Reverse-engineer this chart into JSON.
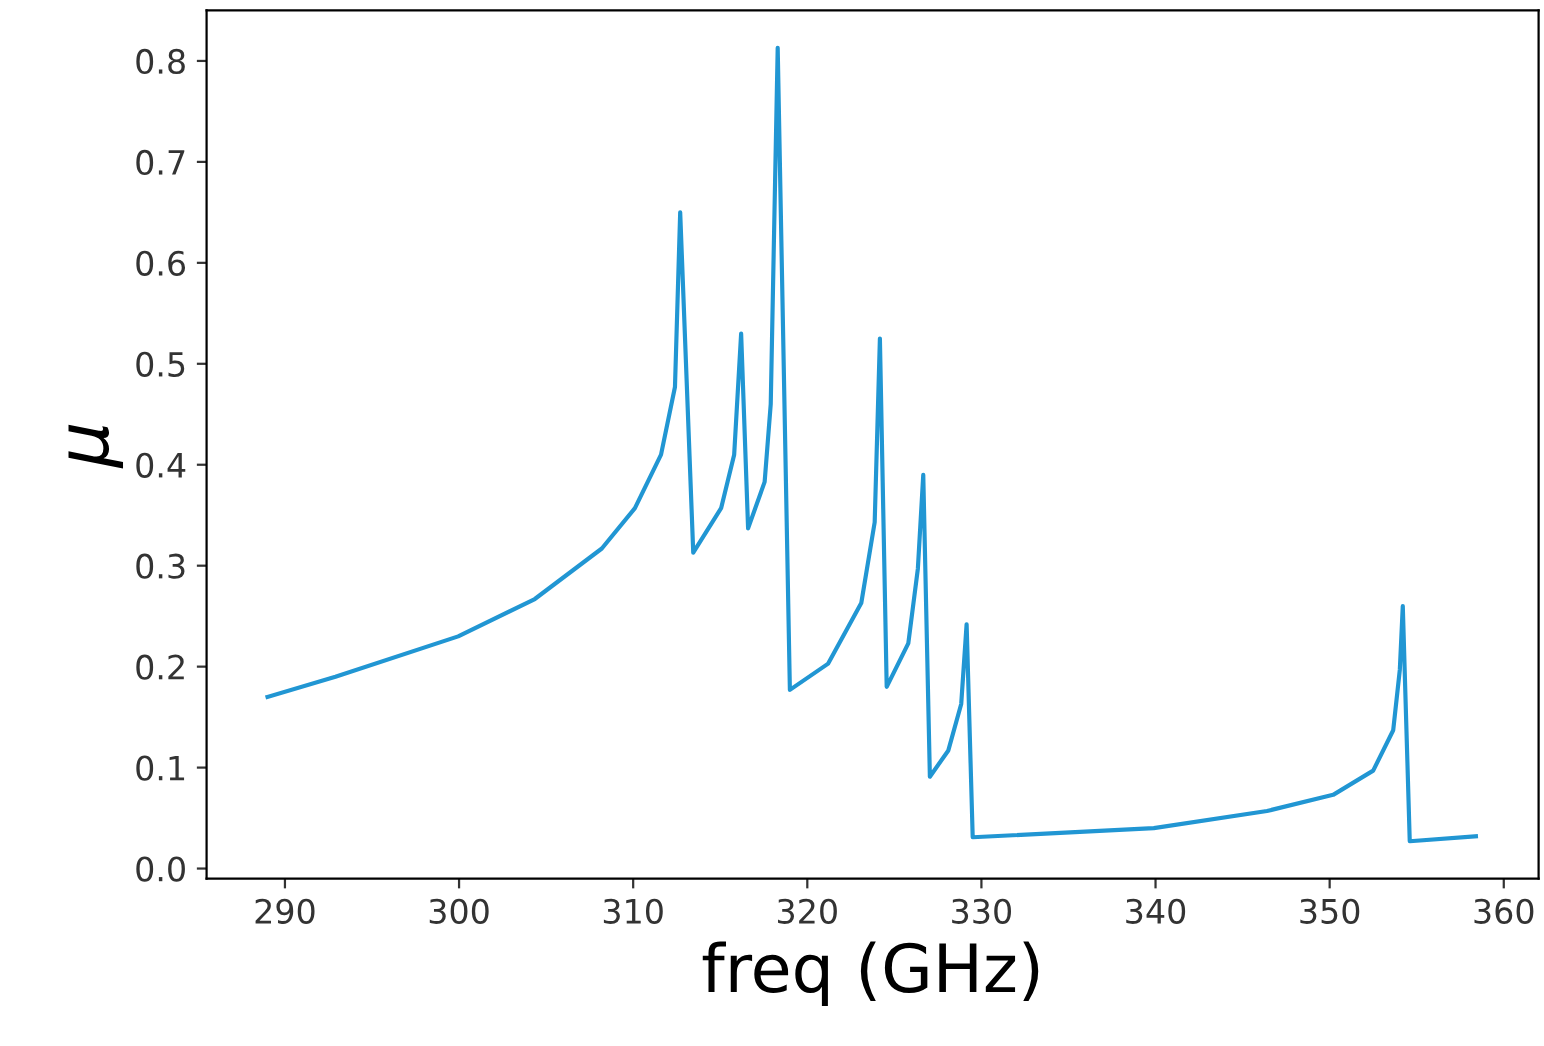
{
  "chart_data": {
    "type": "line",
    "xlabel": "freq (GHz)",
    "ylabel": "μ",
    "xlim": [
      285.5,
      362.0
    ],
    "ylim": [
      -0.01,
      0.85
    ],
    "xticks": [
      290,
      300,
      310,
      320,
      330,
      340,
      350,
      360
    ],
    "yticks": [
      {
        "value": 0.0,
        "label": "0.0"
      },
      0.1,
      0.2,
      0.3,
      0.4,
      0.5,
      0.6,
      0.7,
      0.8
    ],
    "grid": false,
    "marker": "none",
    "line_style": "solid",
    "series": [
      {
        "color": "#2196d3",
        "x": [
          289.0,
          292.9,
          299.95,
          304.35,
          308.2,
          310.1,
          311.6,
          312.4,
          312.7,
          313.45,
          315.05,
          315.8,
          316.2,
          316.6,
          317.55,
          317.9,
          318.3,
          319.0,
          321.2,
          323.1,
          323.87,
          324.17,
          324.56,
          325.8,
          326.35,
          326.66,
          327.04,
          328.1,
          328.84,
          329.15,
          329.5,
          339.9,
          346.4,
          350.2,
          352.5,
          353.65,
          354.03,
          354.2,
          354.6,
          358.4
        ],
        "values": [
          0.17,
          0.19,
          0.23,
          0.267,
          0.317,
          0.357,
          0.41,
          0.477,
          0.65,
          0.313,
          0.357,
          0.41,
          0.53,
          0.337,
          0.383,
          0.46,
          0.813,
          0.177,
          0.203,
          0.263,
          0.343,
          0.525,
          0.18,
          0.223,
          0.297,
          0.39,
          0.091,
          0.117,
          0.163,
          0.242,
          0.031,
          0.04,
          0.057,
          0.073,
          0.097,
          0.137,
          0.197,
          0.26,
          0.027,
          0.032
        ]
      }
    ]
  }
}
